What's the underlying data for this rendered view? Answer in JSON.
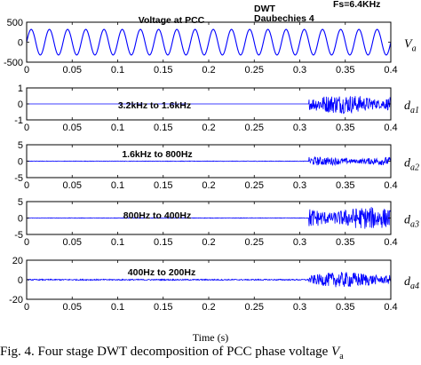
{
  "chart_data": [
    {
      "type": "line",
      "series": [
        {
          "name": "V",
          "subscript": "a"
        }
      ],
      "annotations": [
        "Voltage at PCC",
        "DWT",
        "Daubechies 4",
        "Fs=6.4KHz"
      ],
      "xlim": [
        0,
        0.4
      ],
      "ylim": [
        -500,
        500
      ],
      "x_ticks": [
        "0",
        "0.05",
        "0.1",
        "0.15",
        "0.2",
        "0.25",
        "0.3",
        "0.35",
        "0.4"
      ],
      "y_ticks": [
        "500",
        "0",
        "-500"
      ],
      "amplitude": 320,
      "cycles": 20,
      "color": "#0000ff"
    },
    {
      "type": "line",
      "series": [
        {
          "name": "d",
          "subscript": "a1"
        }
      ],
      "annotations": [
        "3.2kHz to 1.6kHz"
      ],
      "xlim": [
        0,
        0.4
      ],
      "ylim": [
        -1,
        1
      ],
      "x_ticks": [
        "0",
        "0.05",
        "0.1",
        "0.15",
        "0.2",
        "0.25",
        "0.3",
        "0.35",
        "0.4"
      ],
      "y_ticks": [
        "1",
        "0",
        "-1"
      ],
      "fault_start": 0.31,
      "noise_amplitude": 0.6,
      "color": "#0000ff"
    },
    {
      "type": "line",
      "series": [
        {
          "name": "d",
          "subscript": "a2"
        }
      ],
      "annotations": [
        "1.6kHz to 800Hz"
      ],
      "xlim": [
        0,
        0.4
      ],
      "ylim": [
        -5,
        5
      ],
      "x_ticks": [
        "0",
        "0.05",
        "0.1",
        "0.15",
        "0.2",
        "0.25",
        "0.3",
        "0.35",
        "0.4"
      ],
      "y_ticks": [
        "5",
        "0",
        "-5"
      ],
      "fault_start": 0.31,
      "noise_amplitude": 1.3,
      "color": "#0000ff"
    },
    {
      "type": "line",
      "series": [
        {
          "name": "d",
          "subscript": "a3"
        }
      ],
      "annotations": [
        "800Hz to 400Hz"
      ],
      "xlim": [
        0,
        0.4
      ],
      "ylim": [
        -5,
        5
      ],
      "x_ticks": [
        "0",
        "0.05",
        "0.1",
        "0.15",
        "0.2",
        "0.25",
        "0.3",
        "0.35",
        "0.4"
      ],
      "y_ticks": [
        "5",
        "0",
        "-5"
      ],
      "fault_start": 0.31,
      "noise_amplitude": 3.4,
      "color": "#0000ff"
    },
    {
      "type": "line",
      "series": [
        {
          "name": "d",
          "subscript": "a4"
        }
      ],
      "annotations": [
        "400Hz to 200Hz"
      ],
      "xlim": [
        0,
        0.4
      ],
      "ylim": [
        -20,
        20
      ],
      "x_ticks": [
        "0",
        "0.05",
        "0.1",
        "0.15",
        "0.2",
        "0.25",
        "0.3",
        "0.35",
        "0.4"
      ],
      "y_ticks": [
        "20",
        "0",
        "-20"
      ],
      "fault_start": 0.31,
      "noise_amplitude": 8,
      "color": "#0000ff"
    }
  ],
  "xlabel": "Time (s)",
  "caption": {
    "text": "Fig. 4. Four stage DWT decomposition of PCC phase voltage ",
    "symbol": "V",
    "subscript": "a"
  }
}
